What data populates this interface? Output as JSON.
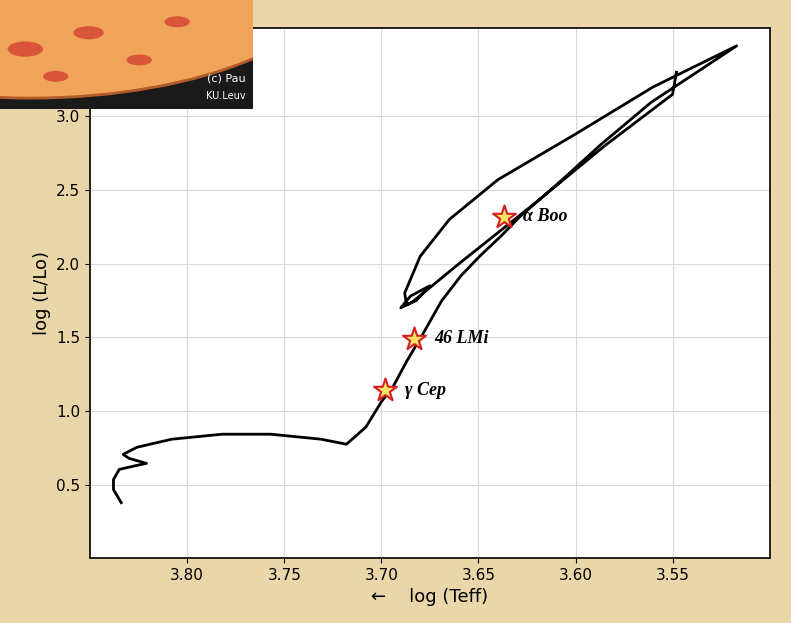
{
  "chart_data": {
    "type": "line",
    "x_label": "←    log (Teff)",
    "y_label": "log (L/Lo)",
    "xlim": [
      3.85,
      3.5
    ],
    "ylim": [
      0.0,
      3.6
    ],
    "xticks": [
      {
        "value": 3.8,
        "label": "3.80"
      },
      {
        "value": 3.75,
        "label": "3.75"
      },
      {
        "value": 3.7,
        "label": "3.70"
      },
      {
        "value": 3.65,
        "label": "3.65"
      },
      {
        "value": 3.6,
        "label": "3.60"
      },
      {
        "value": 3.55,
        "label": "3.55"
      }
    ],
    "yticks": [
      0.5,
      1.0,
      1.5,
      2.0,
      2.5,
      3.0
    ],
    "grid": true,
    "series": [
      {
        "color": "#000000",
        "x": [
          3.834,
          3.838,
          3.838,
          3.835,
          3.826,
          3.821,
          3.83,
          3.833,
          3.826,
          3.808,
          3.782,
          3.757,
          3.731,
          3.718,
          3.708,
          3.7,
          3.694,
          3.687,
          3.679,
          3.669,
          3.659,
          3.649,
          3.638,
          3.629,
          3.607,
          3.587,
          3.561,
          3.535,
          3.517,
          3.56,
          3.6,
          3.64,
          3.665,
          3.68,
          3.688,
          3.687,
          3.682,
          3.675,
          3.685,
          3.69,
          3.684,
          3.66,
          3.62,
          3.585,
          3.55,
          3.548
        ],
        "values": [
          0.377,
          0.466,
          0.534,
          0.603,
          0.63,
          0.644,
          0.678,
          0.705,
          0.753,
          0.808,
          0.842,
          0.842,
          0.808,
          0.774,
          0.89,
          1.062,
          1.164,
          1.336,
          1.514,
          1.747,
          1.918,
          2.055,
          2.192,
          2.315,
          2.568,
          2.808,
          3.096,
          3.322,
          3.479,
          3.2,
          2.88,
          2.57,
          2.3,
          2.05,
          1.8,
          1.72,
          1.75,
          1.85,
          1.78,
          1.7,
          1.74,
          2.0,
          2.42,
          2.8,
          3.15,
          3.3
        ]
      }
    ],
    "stars": {
      "marker": "star",
      "color": "#f5e36a",
      "labels": [
        "α Boo",
        "46 LMi",
        "γ Cep"
      ],
      "x": [
        3.637,
        3.683,
        3.698
      ],
      "y": [
        2.32,
        1.49,
        1.14
      ]
    },
    "inset_texts": [
      "(c) Pau",
      "KU.Leuv"
    ]
  }
}
